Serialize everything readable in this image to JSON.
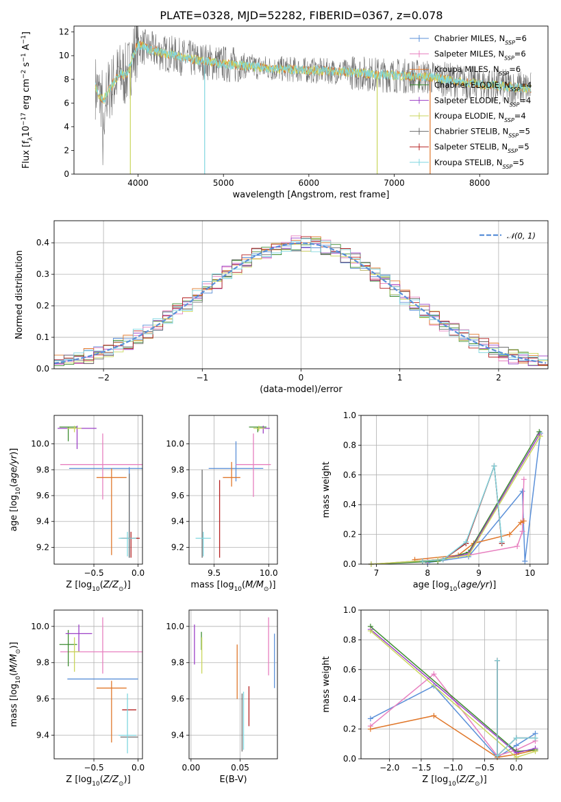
{
  "figure_title": "PLATE=0328, MJD=52282, FIBERID=0367, z=0.078",
  "colors": {
    "chabrier_miles": "#5a8fd8",
    "salpeter_miles": "#e77fbf",
    "kroupa_miles": "#e0772a",
    "chabrier_elodie": "#3c8c2f",
    "salpeter_elodie": "#9b3fc6",
    "kroupa_elodie": "#c9d65b",
    "chabrier_stelib": "#6b6b6b",
    "salpeter_stelib": "#b52020",
    "kroupa_stelib": "#7fd6df",
    "normal_curve": "#5a8fd8",
    "grid": "#b0b0b0"
  },
  "chart_data": [
    {
      "id": "spectrum",
      "type": "line",
      "xlabel": "wavelength [Angstrom, rest frame]",
      "ylabel": "Flux [f_λ10^-17 erg cm^-2 s^-1 A^-1]",
      "xlim": [
        3250,
        8800
      ],
      "ylim": [
        0,
        12.5
      ],
      "xticks": [
        4000,
        5000,
        6000,
        7000,
        8000
      ],
      "yticks": [
        0,
        2,
        4,
        6,
        8,
        10,
        12
      ],
      "grid": false,
      "legend_position": "top-right",
      "legend": [
        {
          "label": "Chabrier MILES, N",
          "sub": "SSP",
          "tail": "=6",
          "color_key": "chabrier_miles"
        },
        {
          "label": "Salpeter MILES, N",
          "sub": "SSP",
          "tail": "=6",
          "color_key": "salpeter_miles"
        },
        {
          "label": "Kroupa MILES, N",
          "sub": "SSP",
          "tail": "=6",
          "color_key": "kroupa_miles"
        },
        {
          "label": "Chabrier ELODIE, N",
          "sub": "SSP",
          "tail": "=4",
          "color_key": "chabrier_elodie"
        },
        {
          "label": "Salpeter ELODIE, N",
          "sub": "SSP",
          "tail": "=4",
          "color_key": "salpeter_elodie"
        },
        {
          "label": "Kroupa ELODIE, N",
          "sub": "SSP",
          "tail": "=4",
          "color_key": "kroupa_elodie"
        },
        {
          "label": "Chabrier STELIB, N",
          "sub": "SSP",
          "tail": "=5",
          "color_key": "chabrier_stelib"
        },
        {
          "label": "Salpeter STELIB, N",
          "sub": "SSP",
          "tail": "=5",
          "color_key": "salpeter_stelib"
        },
        {
          "label": "Kroupa STELIB, N",
          "sub": "SSP",
          "tail": "=5",
          "color_key": "kroupa_stelib"
        }
      ],
      "continuum": {
        "x": [
          3500,
          3550,
          3600,
          3650,
          3700,
          3750,
          3800,
          3850,
          3900,
          3950,
          4000,
          4100,
          4200,
          4300,
          4400,
          4500,
          4700,
          5000,
          5300,
          5600,
          5900,
          6200,
          6500,
          6800,
          7100,
          7400,
          7700,
          8000,
          8300,
          8600
        ],
        "y": [
          7.4,
          6.6,
          6.3,
          7.0,
          7.5,
          8.2,
          8.5,
          8.3,
          8.9,
          10.2,
          11.0,
          10.6,
          10.4,
          10.2,
          10.1,
          9.9,
          9.6,
          9.3,
          9.1,
          8.9,
          8.8,
          8.7,
          8.6,
          8.4,
          8.3,
          8.2,
          7.9,
          7.6,
          7.4,
          7.2
        ]
      }
    },
    {
      "id": "residuals",
      "type": "line",
      "xlabel": "(data-model)/error",
      "ylabel": "Normed distribution",
      "xlim": [
        -2.5,
        2.5
      ],
      "ylim": [
        0,
        0.47
      ],
      "xticks": [
        -2,
        -1,
        0,
        1,
        2
      ],
      "yticks": [
        0.0,
        0.1,
        0.2,
        0.3,
        0.4
      ],
      "grid": true,
      "legend_position": "top-right",
      "legend": [
        {
          "label": "𝒩(0, 1)",
          "color_key": "normal_curve"
        }
      ],
      "bin_width": 0.1
    },
    {
      "id": "age_vs_Z",
      "type": "scatter",
      "xlabel": "Z [log10(Z/Z⊙)]",
      "ylabel": "age [log10(age/yr)]",
      "xlim": [
        -0.95,
        0.05
      ],
      "ylim": [
        9.07,
        10.22
      ],
      "xticks": [
        -0.5,
        0.0
      ],
      "yticks": [
        9.2,
        9.4,
        9.6,
        9.8,
        10.0
      ],
      "grid": true,
      "points": [
        {
          "color_key": "chabrier_miles",
          "x": -0.1,
          "xerr": 0.68,
          "y": 9.81,
          "yerr": [
            0.69,
            0.01
          ]
        },
        {
          "color_key": "salpeter_miles",
          "x": -0.4,
          "xerr": 0.48,
          "y": 9.84,
          "yerr": [
            0.27,
            0.24
          ]
        },
        {
          "color_key": "kroupa_miles",
          "x": -0.3,
          "xerr": 0.17,
          "y": 9.74,
          "yerr": [
            0.6,
            0.07
          ]
        },
        {
          "color_key": "chabrier_elodie",
          "x": -0.79,
          "xerr": 0.1,
          "y": 10.13,
          "yerr": [
            0.11,
            0.0
          ]
        },
        {
          "color_key": "salpeter_elodie",
          "x": -0.69,
          "xerr": 0.22,
          "y": 10.12,
          "yerr": [
            0.16,
            0.02
          ]
        },
        {
          "color_key": "kroupa_elodie",
          "x": -0.72,
          "xerr": 0.08,
          "y": 10.12,
          "yerr": [
            0.03,
            0.02
          ]
        },
        {
          "color_key": "chabrier_stelib",
          "x": -0.1,
          "xerr": 0.1,
          "y": 9.27,
          "yerr": [
            0.15,
            0.5
          ]
        },
        {
          "color_key": "salpeter_stelib",
          "x": -0.08,
          "xerr": 0.1,
          "y": 9.27,
          "yerr": [
            0.15,
            0.05
          ]
        },
        {
          "color_key": "kroupa_stelib",
          "x": -0.12,
          "xerr": 0.1,
          "y": 9.27,
          "yerr": [
            0.14,
            0.05
          ]
        }
      ]
    },
    {
      "id": "age_vs_mass",
      "type": "scatter",
      "xlabel": "mass [log10(M/M⊙)]",
      "ylabel": "",
      "xlim": [
        9.27,
        10.08
      ],
      "ylim": [
        9.07,
        10.22
      ],
      "xticks": [
        9.5,
        10.0
      ],
      "yticks": [
        9.2,
        9.4,
        9.6,
        9.8,
        10.0
      ],
      "grid": true,
      "points": [
        {
          "color_key": "chabrier_miles",
          "x": 9.7,
          "xerr": 0.25,
          "y": 9.81,
          "yerr": [
            0.1,
            0.21
          ]
        },
        {
          "color_key": "salpeter_miles",
          "x": 9.86,
          "xerr": 0.16,
          "y": 9.84,
          "yerr": [
            0.25,
            0.24
          ]
        },
        {
          "color_key": "kroupa_miles",
          "x": 9.66,
          "xerr": 0.08,
          "y": 9.74,
          "yerr": [
            0.07,
            0.12
          ]
        },
        {
          "color_key": "chabrier_elodie",
          "x": 9.9,
          "xerr": 0.08,
          "y": 10.13,
          "yerr": [
            0.04,
            0.0
          ]
        },
        {
          "color_key": "salpeter_elodie",
          "x": 9.95,
          "xerr": 0.06,
          "y": 10.12,
          "yerr": [
            0.04,
            0.02
          ]
        },
        {
          "color_key": "kroupa_elodie",
          "x": 9.91,
          "xerr": 0.05,
          "y": 10.12,
          "yerr": [
            0.02,
            0.02
          ]
        },
        {
          "color_key": "chabrier_stelib",
          "x": 9.39,
          "xerr": 0.0,
          "y": 9.27,
          "yerr": [
            0.15,
            0.53
          ]
        },
        {
          "color_key": "salpeter_stelib",
          "x": 9.55,
          "xerr": 0.0,
          "y": 9.27,
          "yerr": [
            0.15,
            0.45
          ]
        },
        {
          "color_key": "kroupa_stelib",
          "x": 9.4,
          "xerr": 0.07,
          "y": 9.27,
          "yerr": [
            0.14,
            0.05
          ]
        }
      ]
    },
    {
      "id": "massweight_vs_age",
      "type": "line",
      "xlabel": "age [log10(age/yr)]",
      "ylabel": "mass weight",
      "xlim": [
        6.7,
        10.35
      ],
      "ylim": [
        0,
        1.0
      ],
      "xticks": [
        7,
        8,
        9,
        10
      ],
      "yticks": [
        0.0,
        0.2,
        0.4,
        0.6,
        0.8,
        1.0
      ],
      "grid": true,
      "series": [
        {
          "color_key": "chabrier_miles",
          "x": [
            8.0,
            8.8,
            9.85,
            9.9,
            10.2
          ],
          "y": [
            0.01,
            0.05,
            0.49,
            0.02,
            0.88
          ]
        },
        {
          "color_key": "salpeter_miles",
          "x": [
            8.0,
            8.8,
            9.75,
            9.85,
            9.88
          ],
          "y": [
            0.02,
            0.06,
            0.12,
            0.22,
            0.57
          ]
        },
        {
          "color_key": "kroupa_miles",
          "x": [
            7.75,
            8.6,
            8.9,
            9.6,
            9.82,
            9.88
          ],
          "y": [
            0.03,
            0.06,
            0.14,
            0.2,
            0.28,
            0.29
          ]
        },
        {
          "color_key": "chabrier_elodie",
          "x": [
            6.9,
            8.2,
            8.8,
            10.18
          ],
          "y": [
            0.0,
            0.02,
            0.08,
            0.89
          ]
        },
        {
          "color_key": "salpeter_elodie",
          "x": [
            6.9,
            8.2,
            8.8,
            10.18
          ],
          "y": [
            0.0,
            0.03,
            0.07,
            0.87
          ]
        },
        {
          "color_key": "kroupa_elodie",
          "x": [
            6.9,
            8.2,
            8.8,
            10.2
          ],
          "y": [
            0.0,
            0.03,
            0.06,
            0.86
          ]
        },
        {
          "color_key": "chabrier_stelib",
          "x": [
            7.9,
            8.3,
            8.75,
            9.3,
            9.45
          ],
          "y": [
            0.02,
            0.03,
            0.14,
            0.66,
            0.14
          ]
        },
        {
          "color_key": "salpeter_stelib",
          "x": [
            7.9,
            8.3,
            8.75,
            9.3,
            9.45
          ],
          "y": [
            0.02,
            0.03,
            0.14,
            0.66,
            0.14
          ]
        },
        {
          "color_key": "kroupa_stelib",
          "x": [
            7.9,
            8.3,
            8.75,
            9.3,
            9.45
          ],
          "y": [
            0.02,
            0.03,
            0.15,
            0.66,
            0.15
          ]
        }
      ]
    },
    {
      "id": "mass_vs_Z",
      "type": "scatter",
      "xlabel": "Z [log10(Z/Z⊙)]",
      "ylabel": "mass [log10(M/M⊙)]",
      "xlim": [
        -0.95,
        0.05
      ],
      "ylim": [
        9.27,
        10.09
      ],
      "xticks": [
        -0.5,
        0.0
      ],
      "yticks": [
        9.4,
        9.6,
        9.8,
        10.0
      ],
      "grid": true,
      "points": [
        {
          "color_key": "chabrier_miles",
          "x": -0.4,
          "xerr": 0.4,
          "y": 9.71,
          "yerr": [
            0.0,
            0.0
          ]
        },
        {
          "color_key": "salpeter_miles",
          "x": -0.4,
          "xerr": 0.48,
          "y": 9.86,
          "yerr": [
            0.12,
            0.19
          ]
        },
        {
          "color_key": "kroupa_miles",
          "x": -0.3,
          "xerr": 0.17,
          "y": 9.66,
          "yerr": [
            0.3,
            0.04
          ]
        },
        {
          "color_key": "chabrier_elodie",
          "x": -0.79,
          "xerr": 0.1,
          "y": 9.9,
          "yerr": [
            0.12,
            0.08
          ]
        },
        {
          "color_key": "salpeter_elodie",
          "x": -0.67,
          "xerr": 0.15,
          "y": 9.96,
          "yerr": [
            0.1,
            0.05
          ]
        },
        {
          "color_key": "kroupa_elodie",
          "x": -0.72,
          "xerr": 0.06,
          "y": 9.86,
          "yerr": [
            0.11,
            0.08
          ]
        },
        {
          "color_key": "chabrier_stelib",
          "x": -0.1,
          "xerr": 0.1,
          "y": 9.39,
          "yerr": [
            0.0,
            0.0
          ]
        },
        {
          "color_key": "salpeter_stelib",
          "x": -0.1,
          "xerr": 0.08,
          "y": 9.54,
          "yerr": [
            0.0,
            0.0
          ]
        },
        {
          "color_key": "kroupa_stelib",
          "x": -0.12,
          "xerr": 0.1,
          "y": 9.4,
          "yerr": [
            0.1,
            0.23
          ]
        }
      ]
    },
    {
      "id": "mass_vs_EBV",
      "type": "scatter",
      "xlabel": "E(B-V)",
      "ylabel": "",
      "xlim": [
        -0.002,
        0.088
      ],
      "ylim": [
        9.27,
        10.09
      ],
      "xticks": [
        0.0,
        0.05
      ],
      "yticks": [
        9.4,
        9.6,
        9.8,
        10.0
      ],
      "grid": true,
      "points": [
        {
          "color_key": "chabrier_miles",
          "x": 0.085,
          "y": 9.81,
          "yerr": [
            0.15,
            0.15
          ]
        },
        {
          "color_key": "salpeter_miles",
          "x": 0.079,
          "y": 9.89,
          "yerr": [
            0.16,
            0.16
          ]
        },
        {
          "color_key": "kroupa_miles",
          "x": 0.047,
          "y": 9.75,
          "yerr": [
            0.15,
            0.15
          ]
        },
        {
          "color_key": "chabrier_elodie",
          "x": 0.0106,
          "y": 9.92,
          "yerr": [
            0.05,
            0.05
          ]
        },
        {
          "color_key": "salpeter_elodie",
          "x": 0.0035,
          "y": 9.9,
          "yerr": [
            0.11,
            0.11
          ]
        },
        {
          "color_key": "kroupa_elodie",
          "x": 0.011,
          "y": 9.84,
          "yerr": [
            0.1,
            0.1
          ]
        },
        {
          "color_key": "chabrier_stelib",
          "x": 0.052,
          "y": 9.47,
          "yerr": [
            0.16,
            0.16
          ]
        },
        {
          "color_key": "salpeter_stelib",
          "x": 0.059,
          "y": 9.56,
          "yerr": [
            0.11,
            0.11
          ]
        },
        {
          "color_key": "kroupa_stelib",
          "x": 0.0535,
          "y": 9.48,
          "yerr": [
            0.16,
            0.16
          ]
        }
      ]
    },
    {
      "id": "massweight_vs_Z",
      "type": "line",
      "xlabel": "Z [log10(Z/Z⊙)]",
      "ylabel": "mass weight",
      "xlim": [
        -2.45,
        0.5
      ],
      "ylim": [
        0,
        1.0
      ],
      "xticks": [
        -2.0,
        -1.5,
        -1.0,
        -0.5,
        0.0
      ],
      "yticks": [
        0.0,
        0.2,
        0.4,
        0.6,
        0.8,
        1.0
      ],
      "grid": true,
      "series": [
        {
          "color_key": "chabrier_miles",
          "x": [
            -2.3,
            -1.3,
            -0.3,
            0.0,
            0.3
          ],
          "y": [
            0.27,
            0.49,
            0.01,
            0.09,
            0.17
          ]
        },
        {
          "color_key": "salpeter_miles",
          "x": [
            -2.3,
            -1.3,
            -0.3,
            0.0,
            0.3
          ],
          "y": [
            0.22,
            0.57,
            0.02,
            0.06,
            0.12
          ]
        },
        {
          "color_key": "kroupa_miles",
          "x": [
            -2.3,
            -1.3,
            -0.3,
            0.0,
            0.3
          ],
          "y": [
            0.2,
            0.29,
            0.01,
            0.03,
            0.06
          ]
        },
        {
          "color_key": "chabrier_elodie",
          "x": [
            -2.3,
            0.0,
            0.3
          ],
          "y": [
            0.89,
            0.05,
            0.06
          ]
        },
        {
          "color_key": "salpeter_elodie",
          "x": [
            -2.3,
            0.0,
            0.3
          ],
          "y": [
            0.87,
            0.04,
            0.07
          ]
        },
        {
          "color_key": "kroupa_elodie",
          "x": [
            -2.3,
            0.0,
            0.3
          ],
          "y": [
            0.86,
            0.01,
            0.05
          ]
        },
        {
          "color_key": "chabrier_stelib",
          "x": [
            -0.3,
            -0.3,
            0.0,
            0.3
          ],
          "y": [
            0.66,
            0.02,
            0.14,
            0.14
          ]
        },
        {
          "color_key": "salpeter_stelib",
          "x": [
            -0.3,
            -0.3,
            0.0,
            0.3
          ],
          "y": [
            0.66,
            0.02,
            0.14,
            0.14
          ]
        },
        {
          "color_key": "kroupa_stelib",
          "x": [
            -0.3,
            -0.3,
            0.0,
            0.3
          ],
          "y": [
            0.66,
            0.02,
            0.14,
            0.14
          ]
        }
      ]
    }
  ]
}
